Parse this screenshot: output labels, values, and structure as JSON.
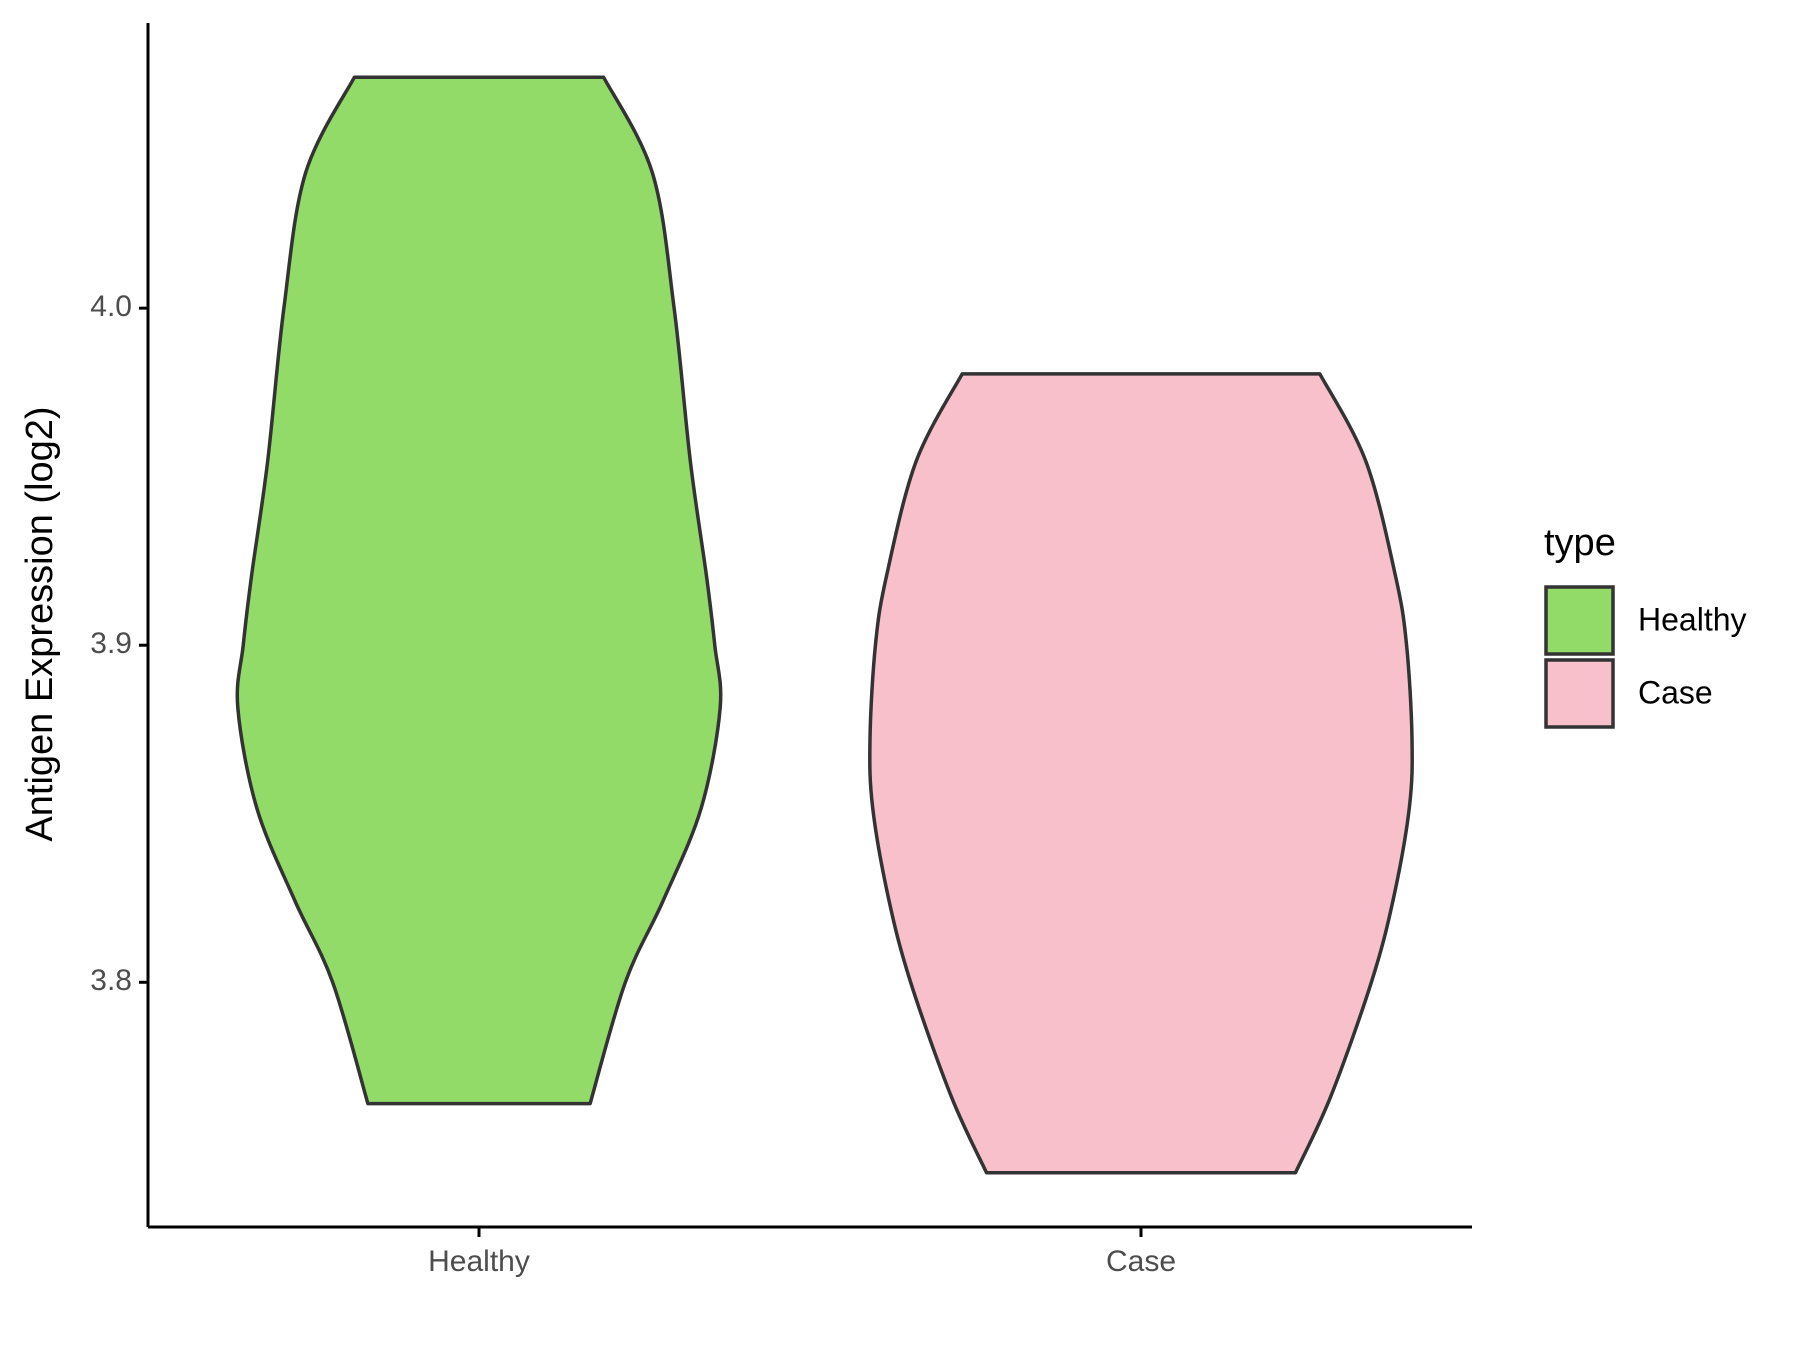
{
  "chart_data": {
    "type": "violin",
    "y_label": "Antigen Expression (log2)",
    "categories": [
      "Healthy",
      "Case"
    ],
    "legend_title": "type",
    "legend": "right",
    "series": [
      {
        "name": "Healthy",
        "color": "#93DB69",
        "values": [
          4.0685,
          4.0401,
          4.0,
          3.9545,
          3.9202,
          3.9,
          3.8815,
          3.8517,
          3.8243,
          3.8,
          3.764
        ],
        "density": [
          0.46,
          0.64,
          0.72,
          0.78,
          0.84,
          0.87,
          0.89,
          0.82,
          0.68,
          0.54,
          0.41
        ]
      },
      {
        "name": "Case",
        "color": "#F7C0CB",
        "values": [
          3.9805,
          3.9545,
          3.9202,
          3.9,
          3.8723,
          3.8517,
          3.8243,
          3.8,
          3.7661,
          3.7435
        ],
        "density": [
          0.66,
          0.83,
          0.94,
          0.98,
          1.0,
          0.99,
          0.93,
          0.85,
          0.7,
          0.57
        ]
      }
    ],
    "ylim": [
      3.7274,
      4.0846
    ],
    "yticks": [
      3.8,
      3.9,
      {
        "value": 4,
        "label": "4.0"
      }
    ]
  }
}
